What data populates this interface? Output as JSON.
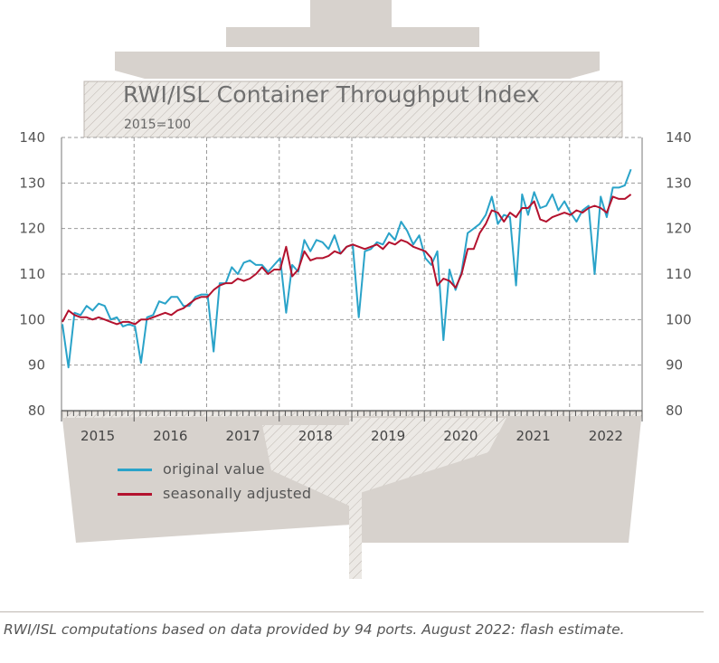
{
  "chart_data": {
    "type": "line",
    "title": "RWI/ISL Container Throughput Index",
    "subtitle": "2015=100",
    "ylim": [
      80,
      140
    ],
    "yticks": [
      80,
      90,
      100,
      110,
      120,
      130,
      140
    ],
    "x_start": "2015-01",
    "year_labels": [
      "2015",
      "2016",
      "2017",
      "2018",
      "2019",
      "2020",
      "2021",
      "2022"
    ],
    "grid": true,
    "legend_position": "bottom-left",
    "series": [
      {
        "name": "original value",
        "color": "#2aa3c9",
        "values": [
          99.0,
          89.5,
          101.5,
          101.0,
          103.0,
          102.0,
          103.5,
          103.0,
          100.0,
          100.5,
          98.5,
          99.0,
          98.5,
          90.5,
          100.5,
          101.0,
          104.0,
          103.5,
          105.0,
          105.0,
          103.0,
          103.0,
          105.0,
          105.5,
          105.5,
          93.0,
          108.0,
          108.0,
          111.5,
          110.0,
          112.5,
          113.0,
          112.0,
          112.0,
          110.5,
          112.0,
          113.5,
          101.5,
          112.0,
          110.5,
          117.5,
          115.0,
          117.5,
          117.0,
          115.5,
          118.5,
          114.5,
          116.0,
          116.5,
          100.5,
          115.0,
          115.5,
          117.0,
          116.5,
          119.0,
          117.5,
          121.5,
          119.5,
          116.5,
          118.5,
          113.5,
          112.0,
          115.0,
          95.5,
          111.0,
          106.5,
          110.5,
          119.0,
          120.0,
          121.0,
          123.0,
          127.0,
          121.0,
          123.0,
          122.5,
          107.5,
          127.5,
          123.0,
          128.0,
          124.5,
          125.0,
          127.5,
          124.0,
          126.0,
          123.5,
          121.5,
          124.0,
          125.0,
          110.0,
          127.0,
          122.5,
          129.0,
          129.0,
          129.5,
          133.0
        ]
      },
      {
        "name": "seasonally adjusted",
        "color": "#b3122e",
        "values": [
          99.5,
          102.0,
          101.0,
          100.5,
          100.5,
          100.0,
          100.5,
          100.0,
          99.5,
          99.0,
          99.5,
          99.5,
          99.0,
          100.0,
          100.0,
          100.5,
          101.0,
          101.5,
          101.0,
          102.0,
          102.5,
          103.5,
          104.5,
          105.0,
          105.0,
          106.5,
          107.5,
          108.0,
          108.0,
          109.0,
          108.5,
          109.0,
          110.0,
          111.5,
          110.0,
          111.0,
          111.0,
          116.0,
          109.5,
          111.0,
          115.0,
          113.0,
          113.5,
          113.5,
          114.0,
          115.0,
          114.5,
          116.0,
          116.5,
          116.0,
          115.5,
          116.0,
          116.5,
          115.5,
          117.0,
          116.5,
          117.5,
          117.0,
          116.0,
          115.5,
          115.0,
          113.5,
          107.5,
          109.0,
          108.5,
          107.0,
          110.0,
          115.5,
          115.5,
          119.0,
          121.0,
          124.0,
          123.5,
          121.5,
          123.5,
          122.5,
          124.5,
          124.5,
          126.0,
          122.0,
          121.5,
          122.5,
          123.0,
          123.5,
          123.0,
          124.0,
          123.5,
          124.5,
          125.0,
          124.5,
          123.5,
          127.0,
          126.5,
          126.5,
          127.5
        ]
      }
    ]
  },
  "footnote": "RWI/ISL computations based on data provided by 94 ports. August 2022: flash estimate."
}
